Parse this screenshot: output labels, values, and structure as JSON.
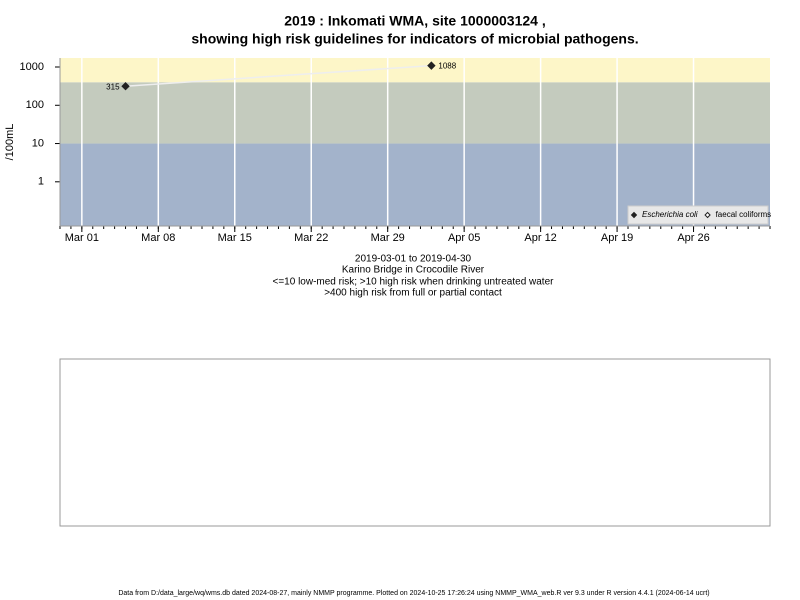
{
  "chart_data": {
    "type": "line",
    "title": "2019 : Inkomati WMA, site 1000003124 ,",
    "subtitle": "showing high risk guidelines for indicators of microbial pathogens.",
    "y_label": "/100mL",
    "notes": [
      "2019-03-01 to 2019-04-30",
      "Karino Bridge in Crocodile River",
      "<=10 low-med risk; >10 high risk when drinking untreated water",
      ">400 high risk from full or partial contact"
    ],
    "footer": "Data from D:/data_large/wq/wms.db dated 2024-08-27, mainly NMMP programme. Plotted on 2024-10-25 17:26:24 using NMMP_WMA_web.R ver 9.3 under R version 4.4.1 (2024-06-14 ucrt)",
    "log_y": true,
    "ylim": [
      0.07,
      1720
    ],
    "yticks": [
      1,
      10,
      100,
      1000
    ],
    "xlim": [
      "Feb 27",
      "May 03"
    ],
    "xticks": [
      "Mar 01",
      "Mar 08",
      "Mar 15",
      "Mar 22",
      "Mar 29",
      "Apr 05",
      "Apr 12",
      "Apr 19",
      "Apr 26"
    ],
    "grid": true,
    "bands": {
      "breaks": [
        10,
        400
      ],
      "colors": [
        "#a3b3cb",
        "#c4cbbe",
        "#fdf6c8"
      ]
    },
    "legend": "bottom right",
    "x": [
      "Mar 05",
      "Apr 02"
    ],
    "series": [
      {
        "name": "Escherichia coli",
        "color": "#222222",
        "marker": "filled",
        "values": [
          315,
          1088
        ],
        "value_labels": [
          "315",
          "1088"
        ]
      },
      {
        "name": "faecal coliforms",
        "color": "#222222",
        "marker": "open",
        "values": [
          null,
          null
        ]
      }
    ]
  }
}
